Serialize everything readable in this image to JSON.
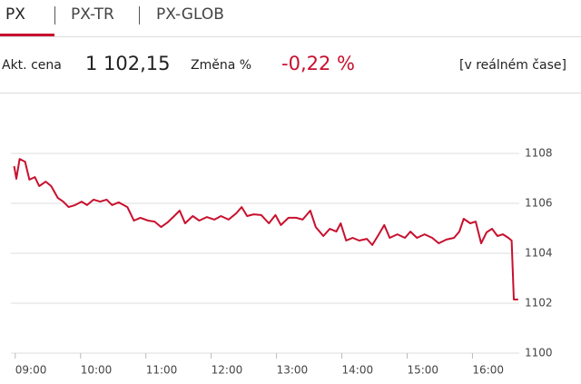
{
  "tabs": [
    "PX",
    "PX-TR",
    "PX-GLOB"
  ],
  "header": {
    "price_label": "Akt. cena",
    "price": "1 102,15",
    "change_label": "Změna %",
    "change": "-0,22 %",
    "realtime": "[v reálném čase]"
  },
  "chart_data": {
    "type": "line",
    "color": "#c8102e",
    "grid": true,
    "x": [
      539,
      541,
      544,
      549,
      553,
      558,
      562,
      568,
      573,
      579,
      584,
      589,
      595,
      601,
      606,
      612,
      618,
      624,
      629,
      635,
      643,
      649,
      655,
      662,
      668,
      674,
      680,
      686,
      691,
      696,
      703,
      709,
      716,
      723,
      729,
      736,
      743,
      748,
      753,
      759,
      766,
      773,
      779,
      784,
      791,
      798,
      804,
      811,
      816,
      823,
      829,
      835,
      839,
      844,
      850,
      856,
      863,
      868,
      874,
      879,
      884,
      891,
      898,
      903,
      909,
      916,
      923,
      929,
      936,
      943,
      948,
      952,
      958,
      963,
      968,
      973,
      978,
      983,
      988,
      993,
      996,
      998,
      1002
    ],
    "values": [
      1107.49,
      1106.98,
      1107.78,
      1107.67,
      1106.95,
      1107.05,
      1106.69,
      1106.87,
      1106.69,
      1106.22,
      1106.07,
      1105.85,
      1105.93,
      1106.07,
      1105.93,
      1106.15,
      1106.07,
      1106.15,
      1105.93,
      1106.04,
      1105.85,
      1105.31,
      1105.42,
      1105.31,
      1105.27,
      1105.05,
      1105.24,
      1105.49,
      1105.71,
      1105.2,
      1105.49,
      1105.31,
      1105.45,
      1105.35,
      1105.49,
      1105.35,
      1105.6,
      1105.85,
      1105.49,
      1105.56,
      1105.53,
      1105.2,
      1105.53,
      1105.13,
      1105.42,
      1105.42,
      1105.35,
      1105.71,
      1105.05,
      1104.69,
      1104.98,
      1104.87,
      1105.2,
      1104.51,
      1104.62,
      1104.51,
      1104.58,
      1104.33,
      1104.76,
      1105.13,
      1104.62,
      1104.76,
      1104.62,
      1104.87,
      1104.62,
      1104.76,
      1104.62,
      1104.4,
      1104.55,
      1104.62,
      1104.87,
      1105.38,
      1105.2,
      1105.27,
      1104.4,
      1104.84,
      1104.98,
      1104.69,
      1104.76,
      1104.62,
      1104.51,
      1102.15,
      1102.15
    ],
    "xlim": [
      536,
      1003
    ],
    "xticks": [
      {
        "value": 540,
        "label": "09:00"
      },
      {
        "value": 600,
        "label": "10:00"
      },
      {
        "value": 660,
        "label": "11:00"
      },
      {
        "value": 720,
        "label": "12:00"
      },
      {
        "value": 780,
        "label": "13:00"
      },
      {
        "value": 840,
        "label": "14:00"
      },
      {
        "value": 900,
        "label": "15:00"
      },
      {
        "value": 960,
        "label": "16:00"
      }
    ],
    "ylim": [
      1100,
      1109
    ],
    "yticks": [
      1100,
      1102,
      1104,
      1106,
      1108
    ]
  }
}
